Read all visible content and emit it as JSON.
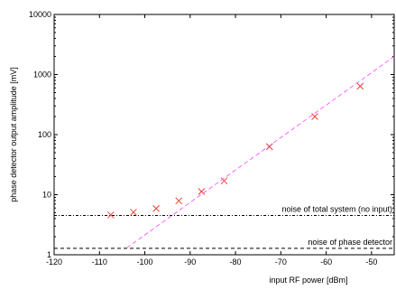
{
  "chart_data": {
    "type": "scatter",
    "xlabel": "input RF power [dBm]",
    "ylabel": "phase detector output amplitude [mV]",
    "xlim": [
      -120,
      -45
    ],
    "ylim": [
      1,
      10000
    ],
    "yscale": "log",
    "grid": false,
    "x_ticks": [
      -120,
      -110,
      -100,
      -90,
      -80,
      -70,
      -60,
      -50
    ],
    "x_tick_labels": [
      "-120",
      "-110",
      "-100",
      "-90",
      "-80",
      "-70",
      "-60",
      "-50"
    ],
    "y_ticks": [
      1,
      10,
      100,
      1000,
      10000
    ],
    "y_tick_labels": [
      "1",
      "10",
      "100",
      "1000",
      "10000"
    ],
    "series": [
      {
        "marker": "x",
        "color": "#e8413a",
        "x": [
          -107.5,
          -102.5,
          -97.5,
          -92.5,
          -87.5,
          -82.5,
          -72.5,
          -62.5,
          -52.5
        ],
        "y": [
          4.6,
          5.1,
          5.9,
          7.9,
          11.3,
          17,
          63,
          200,
          640
        ]
      },
      {
        "style": "dashed-line",
        "color": "#ff66ff",
        "x": [
          -104,
          -45
        ],
        "y": [
          1.3,
          2000
        ]
      }
    ],
    "reference_lines": [
      {
        "label": "noise of total system (no input)",
        "y": 4.5,
        "style": "dash-dot",
        "color": "#000000"
      },
      {
        "label": "noise of phase detector",
        "y": 1.28,
        "style": "dashed",
        "color": "#000000"
      }
    ]
  }
}
